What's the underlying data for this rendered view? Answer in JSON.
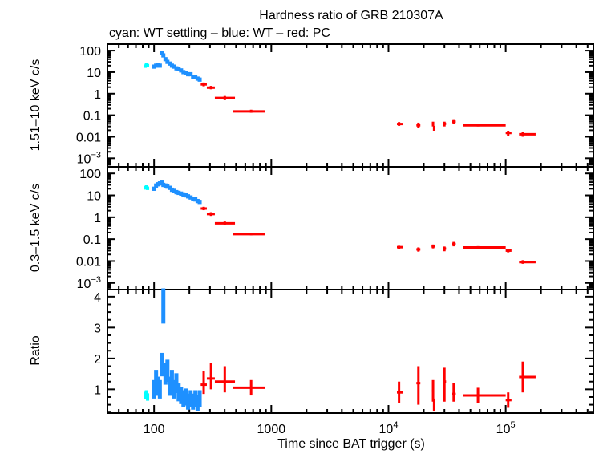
{
  "chart_data": {
    "type": "scatter",
    "title": "Hardness ratio of GRB 210307A",
    "subtitle": "cyan: WT settling – blue: WT – red: PC",
    "xlabel": "Time since BAT trigger (s)",
    "xscale": "log",
    "xlim": [
      40,
      560000
    ],
    "x_ticks": [
      {
        "v": 100,
        "label": "100"
      },
      {
        "v": 1000,
        "label": "1000"
      },
      {
        "v": 10000,
        "label": "10",
        "exp": "4"
      },
      {
        "v": 100000,
        "label": "10",
        "exp": "5"
      }
    ],
    "colors": {
      "wt_settling": "#00ffff",
      "wt": "#1e90ff",
      "pc": "#ff0000"
    },
    "panels": [
      {
        "ylabel": "1.51–10 keV c/s",
        "yscale": "log",
        "ylim": [
          0.0004,
          200
        ],
        "y_ticks": [
          {
            "v": 100,
            "label": "100"
          },
          {
            "v": 10,
            "label": "10"
          },
          {
            "v": 1,
            "label": "1"
          },
          {
            "v": 0.1,
            "label": "0.1"
          },
          {
            "v": 0.01,
            "label": "0.01"
          },
          {
            "v": 0.001,
            "label": "10",
            "exp": "−3"
          }
        ],
        "wt_settling": {
          "x": [
            84,
            86,
            88
          ],
          "y": [
            19,
            22,
            20
          ]
        },
        "wt": {
          "x": [
            100,
            104,
            108,
            112,
            116,
            120,
            125,
            130,
            136,
            142,
            148,
            155,
            162,
            170,
            178,
            186,
            195,
            205,
            215,
            225,
            235,
            245
          ],
          "y": [
            18,
            20,
            22,
            20,
            80,
            60,
            40,
            30,
            25,
            20,
            18,
            15,
            14,
            12,
            10,
            9,
            8,
            8,
            6,
            6,
            5,
            4.5
          ]
        },
        "pc": [
          {
            "x": 265,
            "xlo": 250,
            "xhi": 282,
            "y": 2.7,
            "ylo": 2.2,
            "yhi": 3.3
          },
          {
            "x": 306,
            "xlo": 282,
            "xhi": 330,
            "y": 1.9,
            "ylo": 1.6,
            "yhi": 2.3
          },
          {
            "x": 401,
            "xlo": 330,
            "xhi": 490,
            "y": 0.63,
            "ylo": 0.5,
            "yhi": 0.78
          },
          {
            "x": 673,
            "xlo": 470,
            "xhi": 880,
            "y": 0.15,
            "ylo": 0.13,
            "yhi": 0.18
          },
          {
            "x": 12300,
            "xlo": 11800,
            "xhi": 13300,
            "y": 0.039,
            "ylo": 0.032,
            "yhi": 0.048
          },
          {
            "x": 18000,
            "xlo": 17300,
            "xhi": 18700,
            "y": 0.034,
            "ylo": 0.025,
            "yhi": 0.045
          },
          {
            "x": 24000,
            "xlo": 23500,
            "xhi": 24500,
            "y": 0.04,
            "ylo": 0.03,
            "yhi": 0.05
          },
          {
            "x": 24500,
            "xlo": 24000,
            "xhi": 25000,
            "y": 0.025,
            "ylo": 0.019,
            "yhi": 0.032
          },
          {
            "x": 30000,
            "xlo": 29000,
            "xhi": 31000,
            "y": 0.04,
            "ylo": 0.03,
            "yhi": 0.05
          },
          {
            "x": 36000,
            "xlo": 35000,
            "xhi": 37500,
            "y": 0.05,
            "ylo": 0.04,
            "yhi": 0.065
          },
          {
            "x": 58000,
            "xlo": 43000,
            "xhi": 100000,
            "y": 0.034,
            "ylo": 0.03,
            "yhi": 0.04
          },
          {
            "x": 105000,
            "xlo": 100000,
            "xhi": 112000,
            "y": 0.015,
            "ylo": 0.011,
            "yhi": 0.019
          },
          {
            "x": 140000,
            "xlo": 130000,
            "xhi": 180000,
            "y": 0.013,
            "ylo": 0.01,
            "yhi": 0.016
          }
        ]
      },
      {
        "ylabel": "0.3–1.5 keV c/s",
        "yscale": "log",
        "ylim": [
          0.0005,
          200
        ],
        "y_ticks": [
          {
            "v": 100,
            "label": "100"
          },
          {
            "v": 10,
            "label": "10"
          },
          {
            "v": 1,
            "label": "1"
          },
          {
            "v": 0.1,
            "label": "0.1"
          },
          {
            "v": 0.01,
            "label": "0.01"
          },
          {
            "v": 0.001,
            "label": "10",
            "exp": "−3"
          }
        ],
        "wt_settling": {
          "x": [
            84,
            86,
            88
          ],
          "y": [
            22,
            24,
            21
          ]
        },
        "wt": {
          "x": [
            100,
            104,
            108,
            112,
            116,
            120,
            125,
            130,
            136,
            142,
            148,
            155,
            162,
            170,
            178,
            186,
            195,
            205,
            215,
            225,
            235,
            245
          ],
          "y": [
            20,
            28,
            32,
            35,
            38,
            30,
            28,
            25,
            22,
            18,
            16,
            14,
            13,
            12,
            11,
            10,
            9,
            8,
            7,
            6.5,
            5.5,
            5
          ]
        },
        "pc": [
          {
            "x": 265,
            "xlo": 250,
            "xhi": 282,
            "y": 2.5,
            "ylo": 2.1,
            "yhi": 3.0
          },
          {
            "x": 306,
            "xlo": 282,
            "xhi": 330,
            "y": 1.4,
            "ylo": 1.15,
            "yhi": 1.7
          },
          {
            "x": 401,
            "xlo": 330,
            "xhi": 490,
            "y": 0.53,
            "ylo": 0.44,
            "yhi": 0.64
          },
          {
            "x": 673,
            "xlo": 470,
            "xhi": 880,
            "y": 0.17,
            "ylo": 0.15,
            "yhi": 0.19
          },
          {
            "x": 12300,
            "xlo": 11800,
            "xhi": 13300,
            "y": 0.043,
            "ylo": 0.036,
            "yhi": 0.05
          },
          {
            "x": 18000,
            "xlo": 17300,
            "xhi": 18700,
            "y": 0.034,
            "ylo": 0.027,
            "yhi": 0.042
          },
          {
            "x": 24000,
            "xlo": 23300,
            "xhi": 25000,
            "y": 0.047,
            "ylo": 0.038,
            "yhi": 0.057
          },
          {
            "x": 30000,
            "xlo": 29000,
            "xhi": 31000,
            "y": 0.037,
            "ylo": 0.028,
            "yhi": 0.046
          },
          {
            "x": 36000,
            "xlo": 35000,
            "xhi": 37500,
            "y": 0.06,
            "ylo": 0.047,
            "yhi": 0.075
          },
          {
            "x": 58000,
            "xlo": 43000,
            "xhi": 100000,
            "y": 0.042,
            "ylo": 0.037,
            "yhi": 0.048
          },
          {
            "x": 105000,
            "xlo": 100000,
            "xhi": 112000,
            "y": 0.03,
            "ylo": 0.025,
            "yhi": 0.035
          },
          {
            "x": 140000,
            "xlo": 130000,
            "xhi": 180000,
            "y": 0.009,
            "ylo": 0.0075,
            "yhi": 0.011
          }
        ]
      },
      {
        "ylabel": "Ratio",
        "yscale": "linear",
        "ylim": [
          0.23,
          4.23
        ],
        "y_ticks": [
          {
            "v": 1,
            "label": "1"
          },
          {
            "v": 2,
            "label": "2"
          },
          {
            "v": 3,
            "label": "3"
          },
          {
            "v": 4,
            "label": "4"
          }
        ],
        "wt_settling": {
          "x": [
            84,
            86,
            88
          ],
          "y": [
            0.8,
            0.85,
            0.75
          ]
        },
        "wt": {
          "x": [
            100,
            104,
            108,
            112,
            116,
            120,
            125,
            130,
            136,
            142,
            148,
            155,
            162,
            170,
            178,
            186,
            195,
            205,
            215,
            225,
            235,
            245
          ],
          "y": [
            1.0,
            1.3,
            1.1,
            1.0,
            1.8,
            3.7,
            1.5,
            1.6,
            1.1,
            1.3,
            1.0,
            1.2,
            0.9,
            0.8,
            0.7,
            0.75,
            0.6,
            0.7,
            0.6,
            0.7,
            0.55,
            0.7
          ]
        },
        "pc": [
          {
            "x": 265,
            "xlo": 250,
            "xhi": 282,
            "y": 1.15,
            "ylo": 0.85,
            "yhi": 1.6
          },
          {
            "x": 306,
            "xlo": 282,
            "xhi": 330,
            "y": 1.35,
            "ylo": 1.0,
            "yhi": 1.85
          },
          {
            "x": 401,
            "xlo": 330,
            "xhi": 490,
            "y": 1.25,
            "ylo": 0.9,
            "yhi": 1.75
          },
          {
            "x": 673,
            "xlo": 470,
            "xhi": 880,
            "y": 1.05,
            "ylo": 0.8,
            "yhi": 1.3
          },
          {
            "x": 12300,
            "xlo": 11800,
            "xhi": 13300,
            "y": 0.9,
            "ylo": 0.55,
            "yhi": 1.25
          },
          {
            "x": 18000,
            "xlo": 17300,
            "xhi": 18700,
            "y": 1.2,
            "ylo": 0.5,
            "yhi": 1.75
          },
          {
            "x": 24000,
            "xlo": 23500,
            "xhi": 24500,
            "y": 0.95,
            "ylo": 0.6,
            "yhi": 1.3
          },
          {
            "x": 24500,
            "xlo": 24000,
            "xhi": 25000,
            "y": 0.5,
            "ylo": 0.28,
            "yhi": 0.7
          },
          {
            "x": 30000,
            "xlo": 29000,
            "xhi": 31000,
            "y": 1.25,
            "ylo": 0.6,
            "yhi": 1.7
          },
          {
            "x": 36000,
            "xlo": 35000,
            "xhi": 37500,
            "y": 0.85,
            "ylo": 0.6,
            "yhi": 1.2
          },
          {
            "x": 58000,
            "xlo": 43000,
            "xhi": 100000,
            "y": 0.8,
            "ylo": 0.55,
            "yhi": 1.05
          },
          {
            "x": 105000,
            "xlo": 100000,
            "xhi": 112000,
            "y": 0.65,
            "ylo": 0.4,
            "yhi": 0.9
          },
          {
            "x": 140000,
            "xlo": 130000,
            "xhi": 180000,
            "y": 1.4,
            "ylo": 0.9,
            "yhi": 1.9
          }
        ]
      }
    ]
  }
}
